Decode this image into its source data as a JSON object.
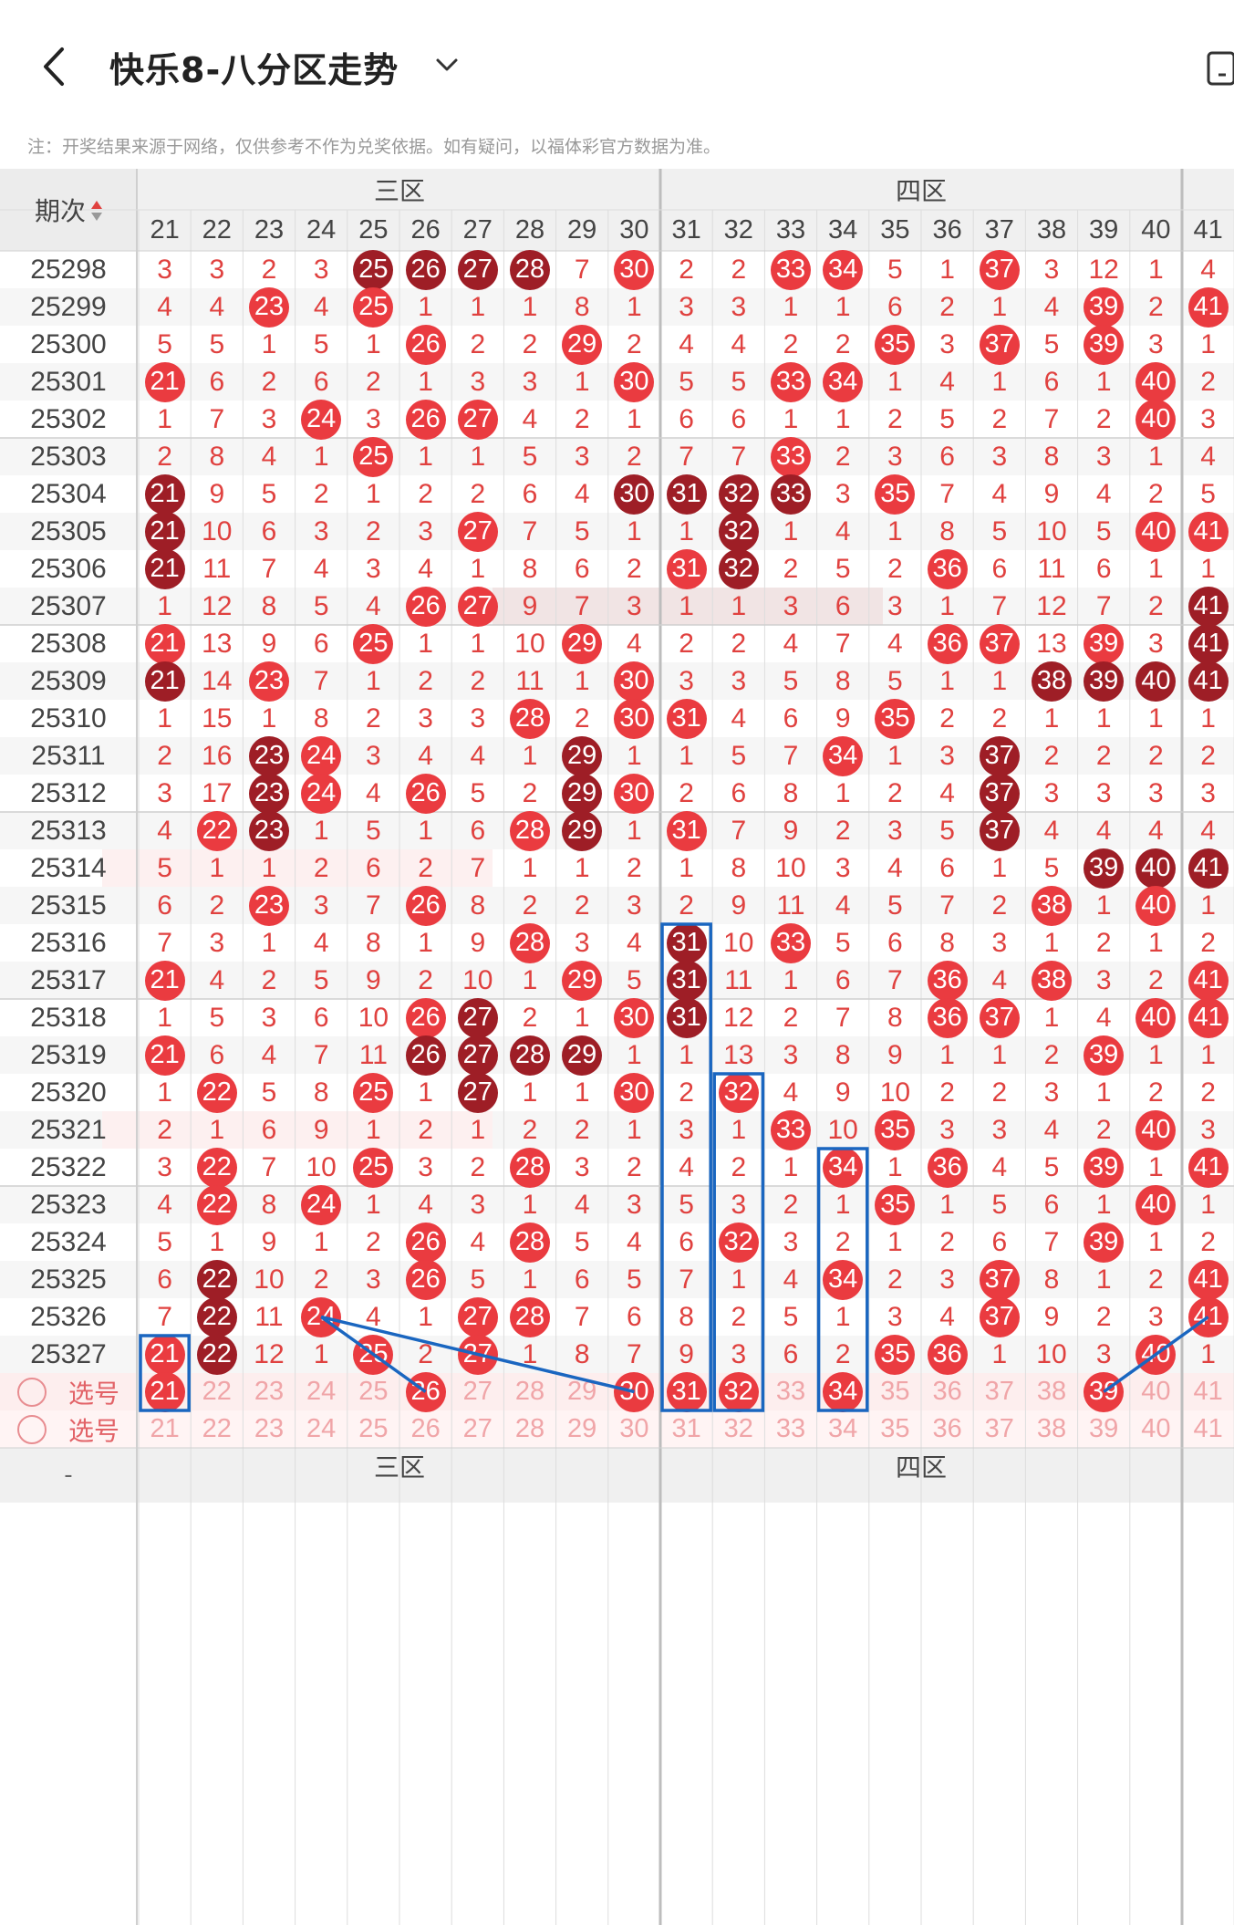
{
  "header": {
    "title": "快乐8-八分区走势",
    "back_icon": "chevron-left-icon",
    "dropdown_icon": "chevron-down-icon",
    "right_icon": "device-icon"
  },
  "note": "注：开奖结果来源于网络，仅供参考不作为兑奖依据。如有疑问，以福体彩官方数据为准。",
  "table": {
    "period_header": "期次",
    "zones": [
      "三区",
      "四区"
    ],
    "columns": [
      "21",
      "22",
      "23",
      "24",
      "25",
      "26",
      "27",
      "28",
      "29",
      "30",
      "31",
      "32",
      "33",
      "34",
      "35",
      "36",
      "37",
      "38",
      "39",
      "40",
      "41"
    ],
    "rows": [
      {
        "period": "25298",
        "cells": [
          "3",
          "3",
          "2",
          "3",
          "R25",
          "R26",
          "R27",
          "R28",
          "7",
          "30",
          "2",
          "2",
          "33",
          "34",
          "5",
          "1",
          "37",
          "3",
          "12",
          "1",
          "4"
        ]
      },
      {
        "period": "25299",
        "cells": [
          "4",
          "4",
          "23",
          "4",
          "25",
          "1",
          "1",
          "1",
          "8",
          "1",
          "3",
          "3",
          "1",
          "1",
          "6",
          "2",
          "1",
          "4",
          "39",
          "2",
          "41"
        ]
      },
      {
        "period": "25300",
        "cells": [
          "5",
          "5",
          "1",
          "5",
          "1",
          "26",
          "2",
          "2",
          "29",
          "2",
          "4",
          "4",
          "2",
          "2",
          "35",
          "3",
          "37",
          "5",
          "39",
          "3",
          "1"
        ]
      },
      {
        "period": "25301",
        "cells": [
          "21",
          "6",
          "2",
          "6",
          "2",
          "1",
          "3",
          "3",
          "1",
          "30",
          "5",
          "5",
          "33",
          "34",
          "1",
          "4",
          "1",
          "6",
          "1",
          "40",
          "2"
        ]
      },
      {
        "period": "25302",
        "cells": [
          "1",
          "7",
          "3",
          "24",
          "3",
          "26",
          "27",
          "4",
          "2",
          "1",
          "6",
          "6",
          "1",
          "1",
          "2",
          "5",
          "2",
          "7",
          "2",
          "40",
          "3"
        ]
      },
      {
        "period": "25303",
        "cells": [
          "2",
          "8",
          "4",
          "1",
          "25",
          "1",
          "1",
          "5",
          "3",
          "2",
          "7",
          "7",
          "33",
          "2",
          "3",
          "6",
          "3",
          "8",
          "3",
          "1",
          "4"
        ]
      },
      {
        "period": "25304",
        "cells": [
          "R21",
          "9",
          "5",
          "2",
          "1",
          "2",
          "2",
          "6",
          "4",
          "R30",
          "R31",
          "R32",
          "R33",
          "3",
          "35",
          "7",
          "4",
          "9",
          "4",
          "2",
          "5"
        ]
      },
      {
        "period": "25305",
        "cells": [
          "R21",
          "10",
          "6",
          "3",
          "2",
          "3",
          "27",
          "7",
          "5",
          "1",
          "1",
          "R32",
          "1",
          "4",
          "1",
          "8",
          "5",
          "10",
          "5",
          "40",
          "41"
        ]
      },
      {
        "period": "25306",
        "cells": [
          "R21",
          "11",
          "7",
          "4",
          "3",
          "4",
          "1",
          "8",
          "6",
          "2",
          "31",
          "R32",
          "2",
          "5",
          "2",
          "36",
          "6",
          "11",
          "6",
          "1",
          "1"
        ]
      },
      {
        "period": "25307",
        "cells": [
          "1",
          "12",
          "8",
          "5",
          "4",
          "26",
          "27",
          "9",
          "7",
          "3",
          "1",
          "1",
          "3",
          "6",
          "3",
          "1",
          "7",
          "12",
          "7",
          "2",
          "R41"
        ]
      },
      {
        "period": "25308",
        "cells": [
          "21",
          "13",
          "9",
          "6",
          "25",
          "1",
          "1",
          "10",
          "29",
          "4",
          "2",
          "2",
          "4",
          "7",
          "4",
          "36",
          "37",
          "13",
          "39",
          "3",
          "R41"
        ]
      },
      {
        "period": "25309",
        "cells": [
          "R21",
          "14",
          "23",
          "7",
          "1",
          "2",
          "2",
          "11",
          "1",
          "30",
          "3",
          "3",
          "5",
          "8",
          "5",
          "1",
          "1",
          "R38",
          "R39",
          "R40",
          "R41"
        ]
      },
      {
        "period": "25310",
        "cells": [
          "1",
          "15",
          "1",
          "8",
          "2",
          "3",
          "3",
          "28",
          "2",
          "30",
          "31",
          "4",
          "6",
          "9",
          "35",
          "2",
          "2",
          "1",
          "1",
          "1",
          "1"
        ]
      },
      {
        "period": "25311",
        "cells": [
          "2",
          "16",
          "R23",
          "24",
          "3",
          "4",
          "4",
          "1",
          "R29",
          "1",
          "1",
          "5",
          "7",
          "34",
          "1",
          "3",
          "R37",
          "2",
          "2",
          "2",
          "2"
        ]
      },
      {
        "period": "25312",
        "cells": [
          "3",
          "17",
          "R23",
          "24",
          "4",
          "26",
          "5",
          "2",
          "R29",
          "30",
          "2",
          "6",
          "8",
          "1",
          "2",
          "4",
          "R37",
          "3",
          "3",
          "3",
          "3"
        ]
      },
      {
        "period": "25313",
        "cells": [
          "4",
          "22",
          "R23",
          "1",
          "5",
          "1",
          "6",
          "28",
          "R29",
          "1",
          "31",
          "7",
          "9",
          "2",
          "3",
          "5",
          "R37",
          "4",
          "4",
          "4",
          "4"
        ]
      },
      {
        "period": "25314",
        "cells": [
          "5",
          "1",
          "1",
          "2",
          "6",
          "2",
          "7",
          "1",
          "1",
          "2",
          "1",
          "8",
          "10",
          "3",
          "4",
          "6",
          "1",
          "5",
          "R39",
          "R40",
          "R41"
        ]
      },
      {
        "period": "25315",
        "cells": [
          "6",
          "2",
          "23",
          "3",
          "7",
          "26",
          "8",
          "2",
          "2",
          "3",
          "2",
          "9",
          "11",
          "4",
          "5",
          "7",
          "2",
          "38",
          "1",
          "40",
          "1"
        ]
      },
      {
        "period": "25316",
        "cells": [
          "7",
          "3",
          "1",
          "4",
          "8",
          "1",
          "9",
          "28",
          "3",
          "4",
          "R31",
          "10",
          "33",
          "5",
          "6",
          "8",
          "3",
          "1",
          "2",
          "1",
          "2"
        ]
      },
      {
        "period": "25317",
        "cells": [
          "21",
          "4",
          "2",
          "5",
          "9",
          "2",
          "10",
          "1",
          "29",
          "5",
          "R31",
          "11",
          "1",
          "6",
          "7",
          "36",
          "4",
          "38",
          "3",
          "2",
          "41"
        ]
      },
      {
        "period": "25318",
        "cells": [
          "1",
          "5",
          "3",
          "6",
          "10",
          "26",
          "R27",
          "2",
          "1",
          "30",
          "R31",
          "12",
          "2",
          "7",
          "8",
          "36",
          "37",
          "1",
          "4",
          "40",
          "41"
        ]
      },
      {
        "period": "25319",
        "cells": [
          "21",
          "6",
          "4",
          "7",
          "11",
          "R26",
          "R27",
          "R28",
          "R29",
          "1",
          "1",
          "13",
          "3",
          "8",
          "9",
          "1",
          "1",
          "2",
          "39",
          "1",
          "1"
        ]
      },
      {
        "period": "25320",
        "cells": [
          "1",
          "22",
          "5",
          "8",
          "25",
          "1",
          "R27",
          "1",
          "1",
          "30",
          "2",
          "32",
          "4",
          "9",
          "10",
          "2",
          "2",
          "3",
          "1",
          "2",
          "2"
        ]
      },
      {
        "period": "25321",
        "cells": [
          "2",
          "1",
          "6",
          "9",
          "1",
          "2",
          "1",
          "2",
          "2",
          "1",
          "3",
          "1",
          "33",
          "10",
          "35",
          "3",
          "3",
          "4",
          "2",
          "40",
          "3"
        ]
      },
      {
        "period": "25322",
        "cells": [
          "3",
          "22",
          "7",
          "10",
          "25",
          "3",
          "2",
          "28",
          "3",
          "2",
          "4",
          "2",
          "1",
          "34",
          "1",
          "36",
          "4",
          "5",
          "39",
          "1",
          "41"
        ]
      },
      {
        "period": "25323",
        "cells": [
          "4",
          "22",
          "8",
          "24",
          "1",
          "4",
          "3",
          "1",
          "4",
          "3",
          "5",
          "3",
          "2",
          "1",
          "35",
          "1",
          "5",
          "6",
          "1",
          "40",
          "1"
        ]
      },
      {
        "period": "25324",
        "cells": [
          "5",
          "1",
          "9",
          "1",
          "2",
          "26",
          "4",
          "28",
          "5",
          "4",
          "6",
          "32",
          "3",
          "2",
          "1",
          "2",
          "6",
          "7",
          "39",
          "1",
          "2"
        ]
      },
      {
        "period": "25325",
        "cells": [
          "6",
          "R22",
          "10",
          "2",
          "3",
          "26",
          "5",
          "1",
          "6",
          "5",
          "7",
          "1",
          "4",
          "34",
          "2",
          "3",
          "37",
          "8",
          "1",
          "2",
          "41"
        ]
      },
      {
        "period": "25326",
        "cells": [
          "7",
          "R22",
          "11",
          "24",
          "4",
          "1",
          "27",
          "28",
          "7",
          "6",
          "8",
          "2",
          "5",
          "1",
          "3",
          "4",
          "37",
          "9",
          "2",
          "3",
          "41"
        ]
      },
      {
        "period": "25327",
        "cells": [
          "21",
          "R22",
          "12",
          "1",
          "25",
          "2",
          "27",
          "1",
          "8",
          "7",
          "9",
          "3",
          "6",
          "2",
          "35",
          "36",
          "1",
          "10",
          "3",
          "40",
          "1"
        ]
      }
    ],
    "select_label": "选号",
    "select_rows": [
      {
        "balls": [
          "21",
          "26",
          "30",
          "31",
          "32",
          "34",
          "39"
        ]
      },
      {
        "balls": []
      }
    ],
    "footer_dash": "-"
  },
  "colors": {
    "ball_red": "#ea3b40",
    "ball_dark": "#9e1e26",
    "number_red": "#e0413f",
    "highlight_blue": "#1a66c0",
    "zone_header_bg": "#f0f0f0",
    "select_row_bg": "#fdeeee"
  }
}
